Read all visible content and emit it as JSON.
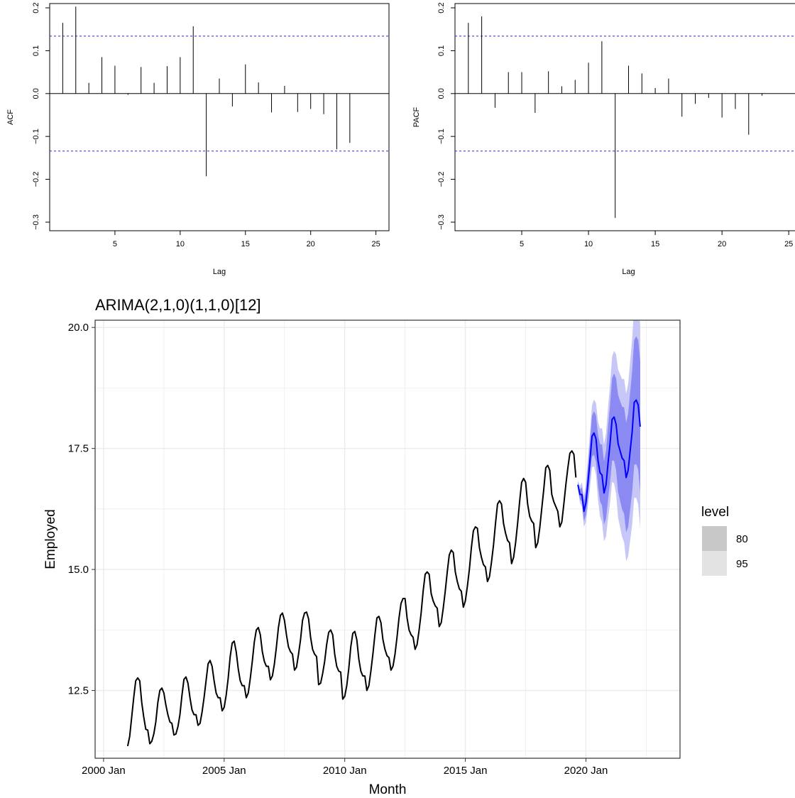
{
  "chart_data": [
    {
      "type": "bar",
      "panel": "ACF",
      "xlabel": "Lag",
      "ylabel": "ACF",
      "xlim": [
        0,
        26
      ],
      "ylim": [
        -0.32,
        0.21
      ],
      "x_ticks": [
        5,
        10,
        15,
        20,
        25
      ],
      "y_ticks": [
        -0.3,
        -0.2,
        -0.1,
        0.0,
        0.1,
        0.2
      ],
      "y_tick_labels": [
        "−0.3",
        "−0.2",
        "−0.1",
        "0.0",
        "0.1",
        "0.2"
      ],
      "ci_limit": 0.134,
      "lags": [
        1,
        2,
        3,
        4,
        5,
        6,
        7,
        8,
        9,
        10,
        11,
        12,
        13,
        14,
        15,
        16,
        17,
        18,
        19,
        20,
        21,
        22,
        23
      ],
      "values": [
        0.165,
        0.203,
        0.025,
        0.085,
        0.065,
        -0.003,
        0.062,
        0.025,
        0.064,
        0.085,
        0.157,
        -0.193,
        0.035,
        -0.03,
        0.068,
        0.026,
        -0.044,
        0.018,
        -0.043,
        -0.036,
        -0.048,
        -0.13,
        -0.115
      ]
    },
    {
      "type": "bar",
      "panel": "PACF",
      "xlabel": "Lag",
      "ylabel": "PACF",
      "xlim": [
        0,
        26
      ],
      "ylim": [
        -0.32,
        0.21
      ],
      "x_ticks": [
        5,
        10,
        15,
        20,
        25
      ],
      "y_ticks": [
        -0.3,
        -0.2,
        -0.1,
        0.0,
        0.1,
        0.2
      ],
      "y_tick_labels": [
        "−0.3",
        "−0.2",
        "−0.1",
        "0.0",
        "0.1",
        "0.2"
      ],
      "ci_limit": 0.134,
      "lags": [
        1,
        2,
        3,
        4,
        5,
        6,
        7,
        8,
        9,
        10,
        11,
        12,
        13,
        14,
        15,
        16,
        17,
        18,
        19,
        20,
        21,
        22,
        23
      ],
      "values": [
        0.165,
        0.18,
        -0.033,
        0.05,
        0.05,
        -0.045,
        0.052,
        0.017,
        0.032,
        0.072,
        0.122,
        -0.29,
        0.065,
        0.047,
        0.013,
        0.035,
        -0.054,
        -0.024,
        -0.01,
        -0.056,
        -0.036,
        -0.096,
        -0.005
      ]
    },
    {
      "type": "line",
      "panel": "forecast",
      "title": "ARIMA(2,1,0)(1,1,0)[12]",
      "xlabel": "Month",
      "ylabel": "Employed",
      "x_ticks": [
        2000,
        2005,
        2010,
        2015,
        2020
      ],
      "x_tick_labels": [
        "2000 Jan",
        "2005 Jan",
        "2010 Jan",
        "2015 Jan",
        "2020 Jan"
      ],
      "y_ticks": [
        12.5,
        15.0,
        17.5,
        20.0
      ],
      "y_tick_labels": [
        "12.5",
        "15.0",
        "17.5",
        "20.0"
      ],
      "xlim": [
        1999.65,
        2023.9
      ],
      "ylim": [
        11.1,
        20.15
      ],
      "legend": {
        "title": "level",
        "placement": "right",
        "entries": [
          "80",
          "95"
        ]
      },
      "colors": {
        "history": "#000000",
        "forecast": "#0000ff",
        "band80": "#8a8af2",
        "band95": "#c6c6f7",
        "legend80": "#c8c8c8",
        "legend95": "#e3e3e3"
      },
      "history": {
        "start": "2001 Jan",
        "values": [
          11.35,
          11.55,
          11.95,
          12.35,
          12.7,
          12.76,
          12.7,
          12.25,
          11.95,
          11.7,
          11.68,
          11.4,
          11.45,
          11.6,
          11.85,
          12.25,
          12.5,
          12.55,
          12.45,
          12.2,
          12.0,
          11.85,
          11.82,
          11.58,
          11.6,
          11.75,
          12.0,
          12.4,
          12.73,
          12.78,
          12.65,
          12.35,
          12.1,
          12.0,
          12.0,
          11.78,
          11.82,
          12.05,
          12.35,
          12.7,
          13.05,
          13.12,
          13.0,
          12.7,
          12.45,
          12.35,
          12.35,
          12.08,
          12.15,
          12.4,
          12.75,
          13.2,
          13.48,
          13.52,
          13.3,
          12.95,
          12.7,
          12.6,
          12.6,
          12.35,
          12.45,
          12.75,
          13.1,
          13.5,
          13.75,
          13.8,
          13.65,
          13.3,
          13.1,
          13.0,
          13.0,
          12.72,
          12.8,
          13.05,
          13.4,
          13.8,
          14.05,
          14.1,
          13.95,
          13.65,
          13.4,
          13.3,
          13.25,
          12.92,
          12.98,
          13.25,
          13.55,
          13.95,
          14.1,
          14.12,
          13.98,
          13.6,
          13.35,
          13.25,
          13.2,
          12.62,
          12.65,
          12.85,
          13.1,
          13.45,
          13.7,
          13.75,
          13.65,
          13.25,
          13.0,
          12.9,
          12.88,
          12.32,
          12.38,
          12.6,
          12.95,
          13.4,
          13.68,
          13.72,
          13.55,
          13.15,
          12.9,
          12.8,
          12.8,
          12.5,
          12.6,
          12.9,
          13.25,
          13.65,
          14.0,
          14.03,
          13.9,
          13.55,
          13.35,
          13.22,
          13.18,
          12.92,
          13.0,
          13.25,
          13.6,
          14.0,
          14.3,
          14.4,
          14.4,
          14.0,
          13.75,
          13.65,
          13.6,
          13.35,
          13.45,
          13.75,
          14.1,
          14.55,
          14.9,
          14.95,
          14.9,
          14.5,
          14.35,
          14.25,
          14.2,
          13.82,
          13.9,
          14.2,
          14.55,
          14.95,
          15.3,
          15.4,
          15.35,
          14.95,
          14.75,
          14.6,
          14.55,
          14.22,
          14.35,
          14.65,
          15.0,
          15.45,
          15.8,
          15.88,
          15.85,
          15.45,
          15.25,
          15.1,
          15.05,
          14.75,
          14.85,
          15.15,
          15.5,
          15.95,
          16.35,
          16.42,
          16.35,
          15.95,
          15.75,
          15.6,
          15.55,
          15.12,
          15.25,
          15.55,
          15.95,
          16.4,
          16.8,
          16.88,
          16.8,
          16.35,
          16.1,
          16.0,
          15.95,
          15.45,
          15.55,
          15.85,
          16.25,
          16.65,
          17.1,
          17.15,
          17.05,
          16.55,
          16.4,
          16.3,
          16.2,
          15.88,
          15.98,
          16.35,
          16.75,
          17.1,
          17.4,
          17.45,
          17.38,
          16.9
        ]
      },
      "forecast": {
        "start": "2019 Sep",
        "mean": [
          16.75,
          16.55,
          16.55,
          16.2,
          16.38,
          16.8,
          17.25,
          17.75,
          17.82,
          17.7,
          17.25,
          17.0,
          16.95,
          16.58,
          16.75,
          17.2,
          17.6,
          18.1,
          18.15,
          18.0,
          17.6,
          17.45,
          17.3,
          17.25,
          16.9,
          17.05,
          17.45,
          17.85,
          18.45,
          18.5,
          18.4,
          17.95
        ],
        "lo80": [
          16.7,
          16.45,
          16.4,
          16.0,
          16.12,
          16.48,
          16.88,
          17.33,
          17.37,
          17.22,
          16.72,
          16.41,
          16.32,
          15.93,
          16.05,
          16.45,
          16.8,
          17.25,
          17.25,
          17.05,
          16.6,
          16.42,
          16.24,
          16.15,
          15.77,
          15.88,
          16.24,
          16.6,
          17.16,
          17.18,
          17.06,
          16.59
        ],
        "hi80": [
          16.8,
          16.65,
          16.7,
          16.4,
          16.64,
          17.12,
          17.62,
          18.17,
          18.27,
          18.18,
          17.78,
          17.59,
          17.58,
          17.23,
          17.45,
          17.95,
          18.4,
          18.95,
          19.05,
          18.95,
          18.6,
          18.48,
          18.36,
          18.35,
          18.03,
          18.22,
          18.66,
          19.1,
          19.74,
          19.82,
          19.74,
          19.31
        ],
        "lo95": [
          16.66,
          16.38,
          16.3,
          15.88,
          15.98,
          16.31,
          16.68,
          17.11,
          17.13,
          16.96,
          16.44,
          16.09,
          15.98,
          15.58,
          15.68,
          16.05,
          16.38,
          16.81,
          16.78,
          16.56,
          16.07,
          15.87,
          15.67,
          15.56,
          15.17,
          15.27,
          15.6,
          15.93,
          16.48,
          16.48,
          16.34,
          15.85
        ],
        "hi95": [
          16.84,
          16.72,
          16.8,
          16.52,
          16.78,
          17.29,
          17.82,
          18.39,
          18.51,
          18.44,
          18.06,
          17.91,
          17.92,
          17.58,
          17.82,
          18.35,
          18.82,
          19.39,
          19.52,
          19.44,
          19.13,
          19.03,
          18.93,
          18.94,
          18.63,
          18.83,
          19.3,
          19.77,
          20.42,
          20.52,
          20.46,
          20.05
        ]
      }
    }
  ]
}
